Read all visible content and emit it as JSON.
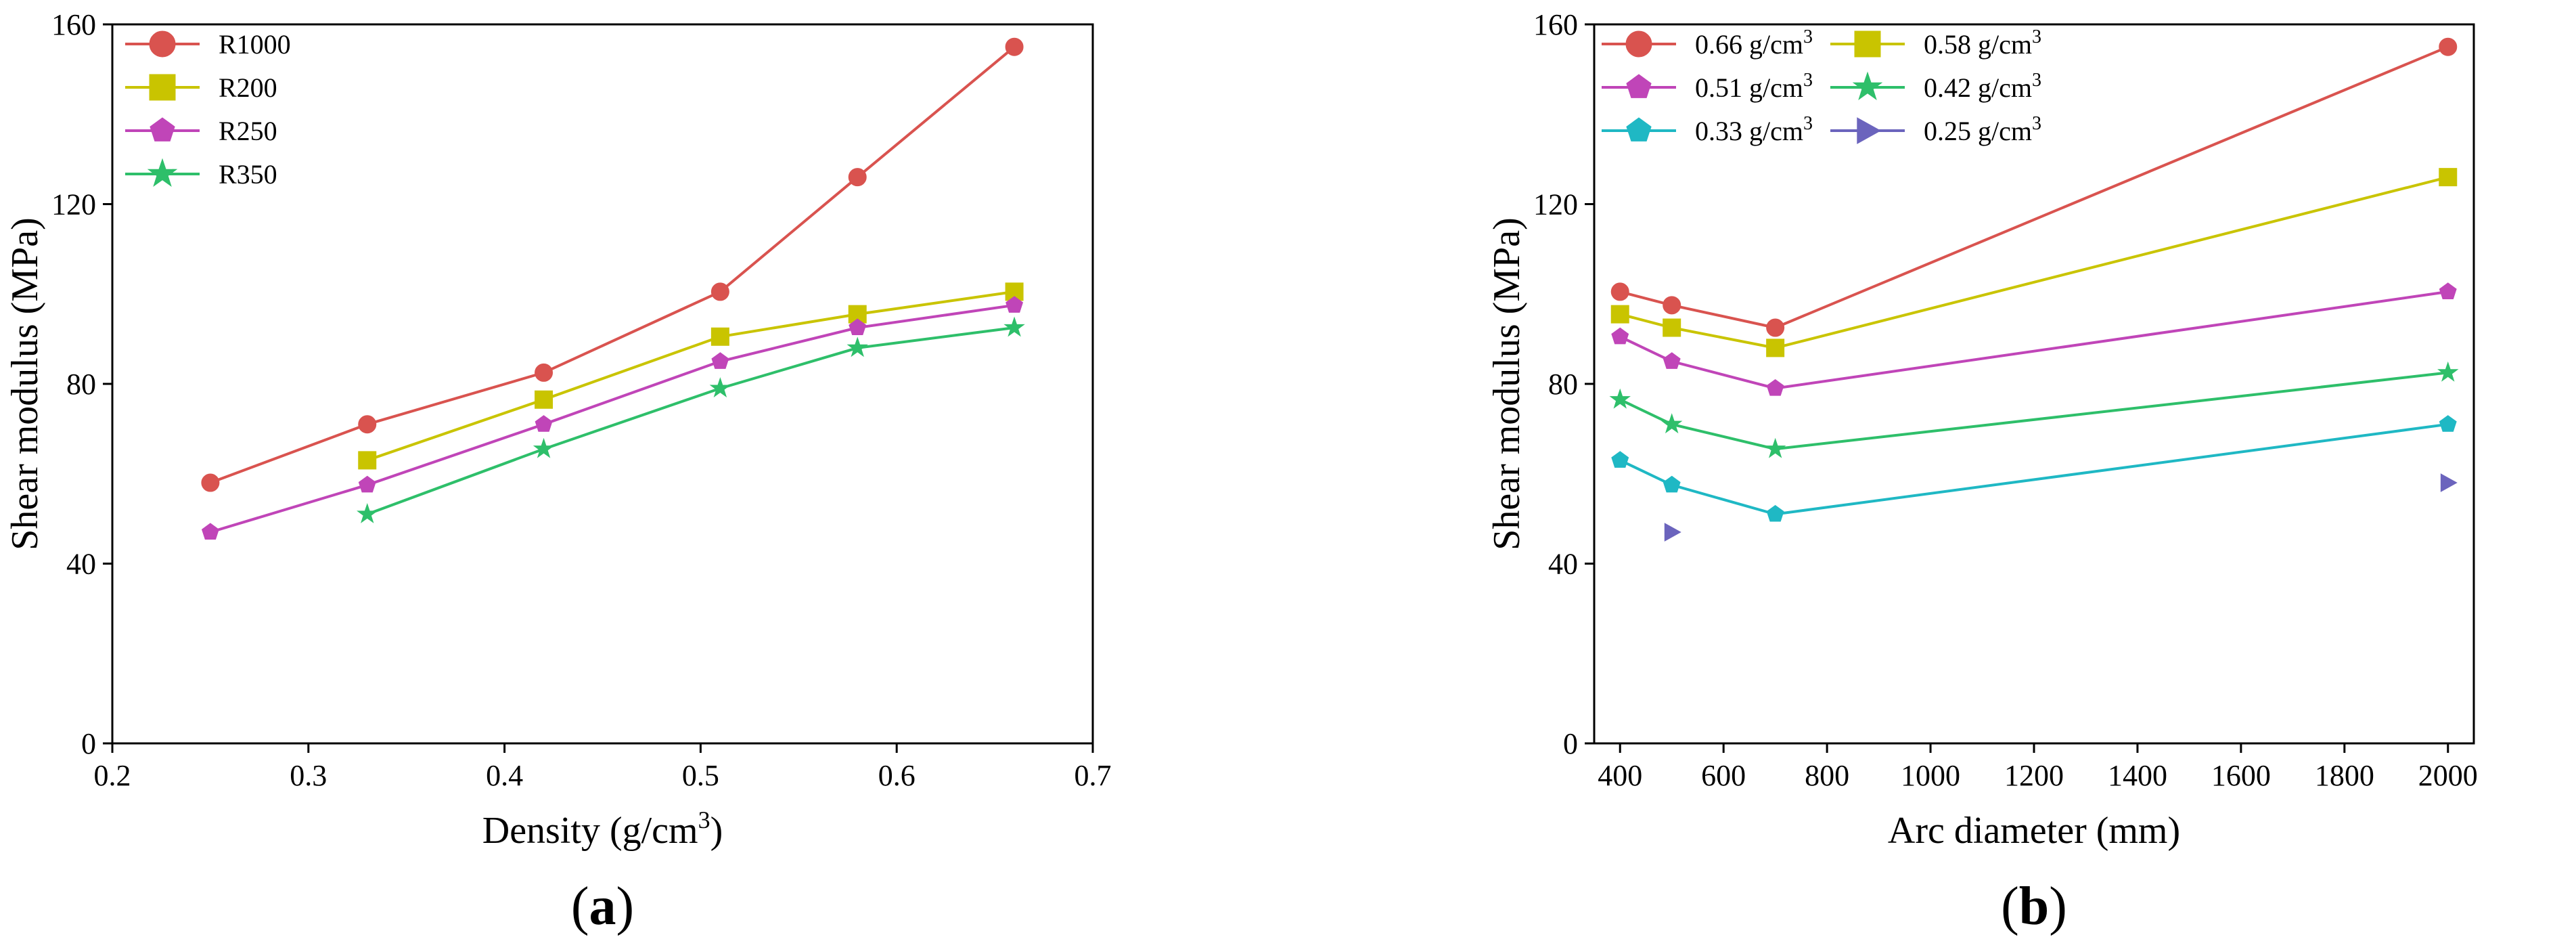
{
  "chart_data": [
    {
      "type": "line",
      "panel_label": "a",
      "xlabel": "Density (g/cm",
      "xlabel_sup": "3",
      "xlabel_end": ")",
      "ylabel": "Shear modulus (MPa)",
      "xlim": [
        0.2,
        0.7
      ],
      "ylim": [
        0,
        160
      ],
      "xticks": [
        0.2,
        0.3,
        0.4,
        0.5,
        0.6,
        0.7
      ],
      "xtick_labels": [
        "0.2",
        "0.3",
        "0.4",
        "0.5",
        "0.6",
        "0.7"
      ],
      "yticks": [
        0,
        40,
        80,
        120,
        160
      ],
      "ytick_labels": [
        "0",
        "40",
        "80",
        "120",
        "160"
      ],
      "legend_position": "top-left",
      "series": [
        {
          "name": "R1000",
          "color": "#d9534f",
          "marker": "circle",
          "x": [
            0.25,
            0.33,
            0.42,
            0.51,
            0.58,
            0.66
          ],
          "y": [
            58,
            71,
            82.5,
            100.5,
            126,
            155
          ]
        },
        {
          "name": "R200",
          "color": "#c9c400",
          "marker": "square",
          "x": [
            0.33,
            0.42,
            0.51,
            0.58,
            0.66
          ],
          "y": [
            63,
            76.5,
            90.5,
            95.5,
            100.5
          ]
        },
        {
          "name": "R250",
          "color": "#c045b8",
          "marker": "pentagon",
          "x": [
            0.25,
            0.33,
            0.42,
            0.51,
            0.58,
            0.66
          ],
          "y": [
            47,
            57.5,
            71,
            85,
            92.5,
            97.5
          ]
        },
        {
          "name": "R350",
          "color": "#2ebf6a",
          "marker": "star",
          "x": [
            0.33,
            0.42,
            0.51,
            0.58,
            0.66
          ],
          "y": [
            51,
            65.5,
            79,
            88,
            92.5
          ]
        }
      ]
    },
    {
      "type": "line",
      "panel_label": "b",
      "xlabel": "Arc diameter (mm)",
      "ylabel": "Shear modulus (MPa)",
      "xlim": [
        350,
        2050
      ],
      "ylim": [
        0,
        160
      ],
      "xticks": [
        400,
        600,
        800,
        1000,
        1200,
        1400,
        1600,
        1800,
        2000
      ],
      "xtick_labels": [
        "400",
        "600",
        "800",
        "1000",
        "1200",
        "1400",
        "1600",
        "1800",
        "2000"
      ],
      "yticks": [
        0,
        40,
        80,
        120,
        160
      ],
      "ytick_labels": [
        "0",
        "40",
        "80",
        "120",
        "160"
      ],
      "legend_position": "top-left",
      "legend_unit_base": " g/cm",
      "legend_unit_sup": "3",
      "series": [
        {
          "name": "0.66",
          "color": "#d9534f",
          "marker": "circle",
          "x": [
            400,
            500,
            700,
            2000
          ],
          "y": [
            100.5,
            97.5,
            92.5,
            155
          ]
        },
        {
          "name": "0.58",
          "color": "#c9c400",
          "marker": "square",
          "x": [
            400,
            500,
            700,
            2000
          ],
          "y": [
            95.5,
            92.5,
            88,
            126
          ]
        },
        {
          "name": "0.51",
          "color": "#c045b8",
          "marker": "pentagon",
          "x": [
            400,
            500,
            700,
            2000
          ],
          "y": [
            90.5,
            85,
            79,
            100.5
          ]
        },
        {
          "name": "0.42",
          "color": "#2ebf6a",
          "marker": "star",
          "x": [
            400,
            500,
            700,
            2000
          ],
          "y": [
            76.5,
            71,
            65.5,
            82.5
          ]
        },
        {
          "name": "0.33",
          "color": "#1fb8c4",
          "marker": "pentagon",
          "x": [
            400,
            500,
            700,
            2000
          ],
          "y": [
            63,
            57.5,
            51,
            71
          ]
        },
        {
          "name": "0.25",
          "color": "#6b64bd",
          "marker": "triangle-right",
          "no_line": true,
          "x": [
            500,
            2000
          ],
          "y": [
            47,
            58
          ]
        }
      ]
    }
  ]
}
